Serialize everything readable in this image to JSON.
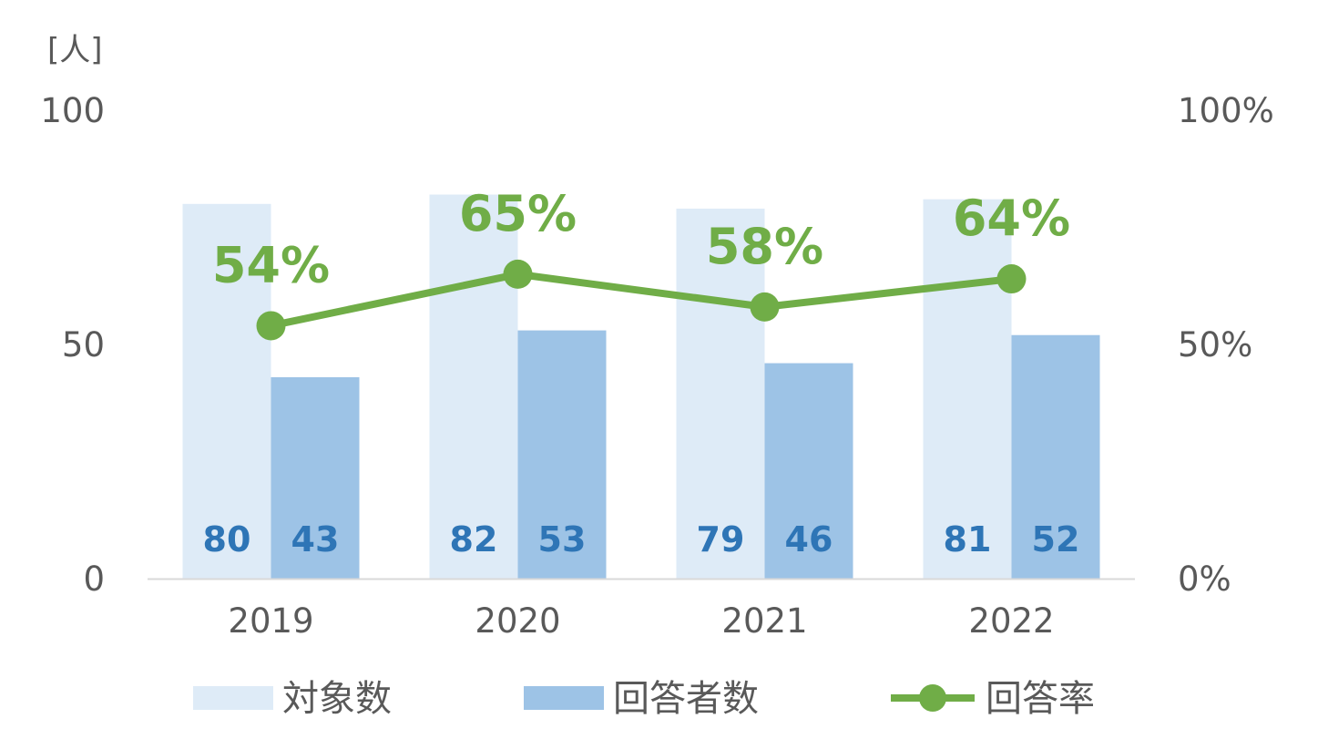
{
  "chart_data": {
    "type": "bar",
    "y_unit_label": "[人]",
    "categories": [
      "2019",
      "2020",
      "2021",
      "2022"
    ],
    "series": [
      {
        "name": "対象数",
        "kind": "bar",
        "values": [
          80,
          82,
          79,
          81
        ],
        "color": "#deebf7"
      },
      {
        "name": "回答者数",
        "kind": "bar",
        "values": [
          43,
          53,
          46,
          52
        ],
        "color": "#9dc3e6"
      },
      {
        "name": "回答率",
        "kind": "line",
        "axis": "right",
        "values": [
          54,
          65,
          58,
          64
        ],
        "color": "#70ad47"
      }
    ],
    "ylim": [
      0,
      100
    ],
    "y_ticks": [
      "0",
      "50",
      "100"
    ],
    "y2lim": [
      0,
      100
    ],
    "y2_ticks": [
      "0%",
      "50%",
      "100%"
    ],
    "data_labels": {
      "bars": [
        [
          "80",
          "43"
        ],
        [
          "82",
          "53"
        ],
        [
          "79",
          "46"
        ],
        [
          "81",
          "52"
        ]
      ],
      "line": [
        "54%",
        "65%",
        "58%",
        "64%"
      ]
    },
    "grid": false,
    "legend_position": "bottom"
  }
}
